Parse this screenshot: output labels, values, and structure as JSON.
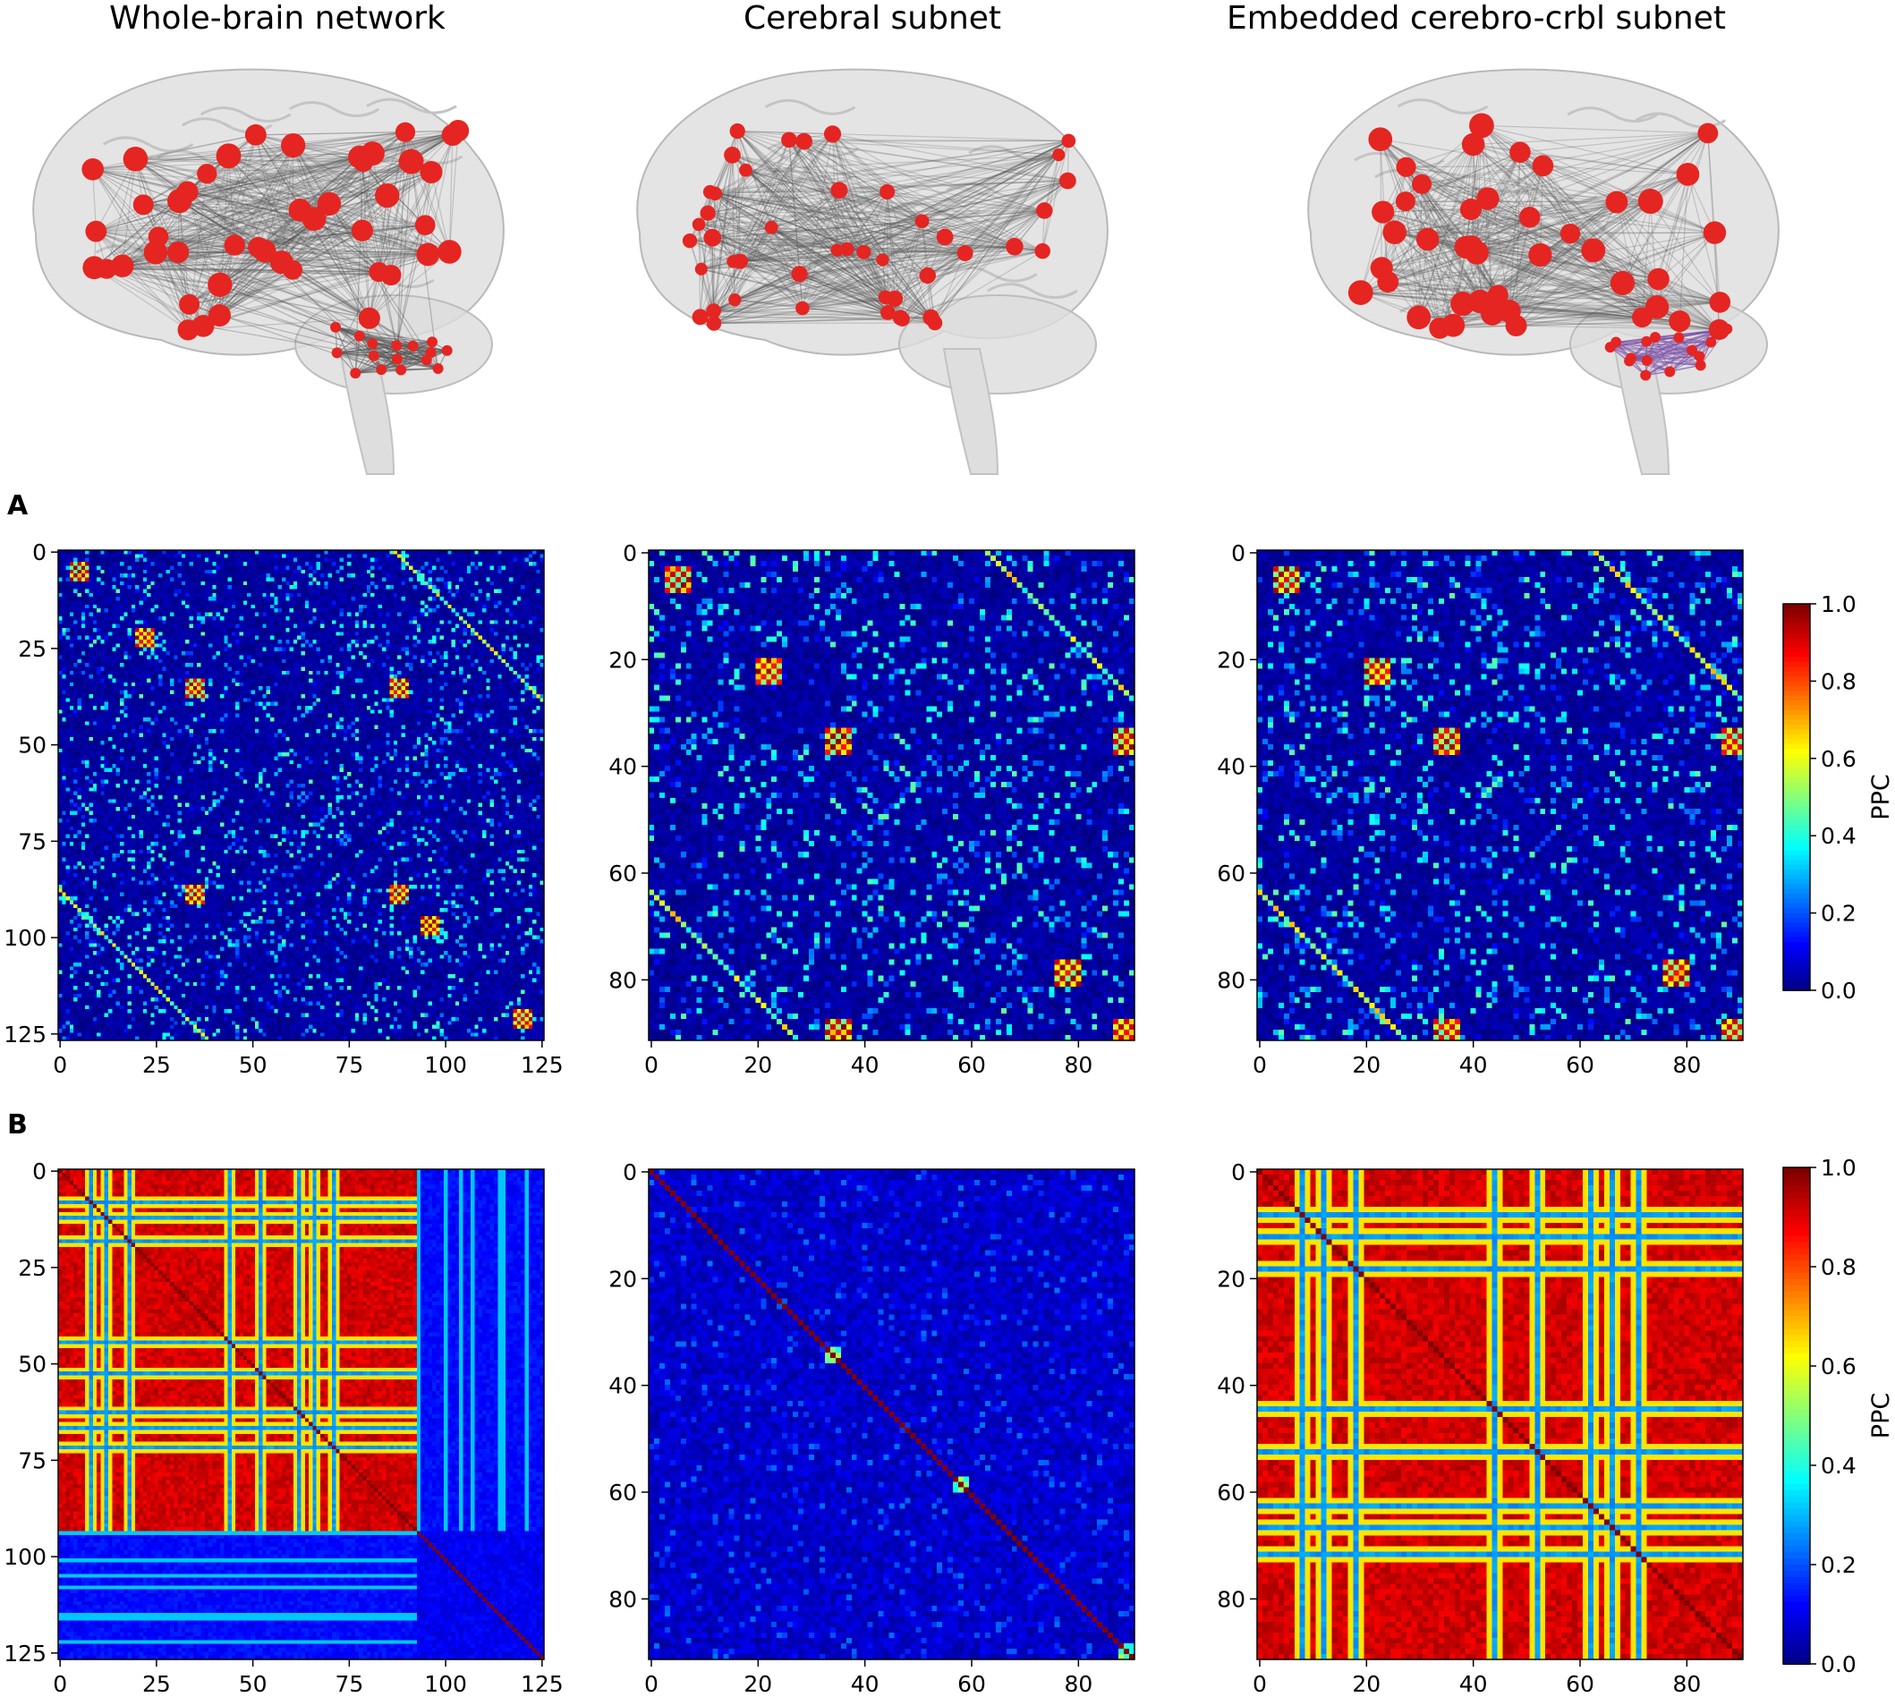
{
  "figure": {
    "columns": [
      {
        "title": "Whole-brain network"
      },
      {
        "title": "Cerebral subnet"
      },
      {
        "title": "Embedded cerebro-crbl subnet"
      }
    ],
    "row_labels": [
      "A",
      "B"
    ],
    "colorbar_label": "PPC",
    "colors": {
      "node": "#e52521",
      "edge": "#555555",
      "cerebellar_edge": "#7b4fa8",
      "brain_fill": "#d9d9d9"
    }
  },
  "chart_data": [
    {
      "type": "heatmap",
      "row": "A",
      "panel": "Whole-brain network",
      "size": 126,
      "xticks": [
        0,
        25,
        50,
        75,
        100,
        125
      ],
      "yticks": [
        0,
        25,
        50,
        75,
        100,
        125
      ],
      "vmin": 0.0,
      "vmax": 1.0,
      "colormap": "jet",
      "pattern": "sparse",
      "hot_blocks": [
        [
          5,
          5
        ],
        [
          35,
          35
        ],
        [
          88,
          35
        ],
        [
          35,
          88
        ],
        [
          88,
          88
        ],
        [
          96,
          96
        ],
        [
          120,
          120
        ],
        [
          22,
          22
        ]
      ]
    },
    {
      "type": "heatmap",
      "row": "A",
      "panel": "Cerebral subnet",
      "size": 91,
      "xticks": [
        0,
        20,
        40,
        60,
        80
      ],
      "yticks": [
        0,
        20,
        40,
        60,
        80
      ],
      "vmin": 0.0,
      "vmax": 1.0,
      "colormap": "jet",
      "pattern": "sparse",
      "hot_blocks": [
        [
          5,
          5
        ],
        [
          22,
          22
        ],
        [
          35,
          35
        ],
        [
          89,
          35
        ],
        [
          35,
          89
        ],
        [
          89,
          89
        ],
        [
          78,
          78
        ]
      ]
    },
    {
      "type": "heatmap",
      "row": "A",
      "panel": "Embedded cerebro-crbl subnet",
      "size": 91,
      "xticks": [
        0,
        20,
        40,
        60,
        80
      ],
      "yticks": [
        0,
        20,
        40,
        60,
        80
      ],
      "vmin": 0.0,
      "vmax": 1.0,
      "colormap": "jet",
      "pattern": "sparse",
      "hot_blocks": [
        [
          5,
          5
        ],
        [
          22,
          22
        ],
        [
          35,
          35
        ],
        [
          89,
          35
        ],
        [
          35,
          89
        ],
        [
          89,
          89
        ],
        [
          78,
          78
        ]
      ]
    },
    {
      "type": "heatmap",
      "row": "B",
      "panel": "Whole-brain network",
      "size": 126,
      "xticks": [
        0,
        25,
        50,
        75,
        100,
        125
      ],
      "yticks": [
        0,
        25,
        50,
        75,
        100,
        125
      ],
      "vmin": 0.0,
      "vmax": 1.0,
      "colormap": "jet",
      "pattern": "blockwise",
      "sync_block": [
        0,
        93
      ],
      "low_columns": [
        8,
        12,
        18,
        44,
        52,
        62,
        66,
        71
      ]
    },
    {
      "type": "heatmap",
      "row": "B",
      "panel": "Cerebral subnet",
      "size": 91,
      "xticks": [
        0,
        20,
        40,
        60,
        80
      ],
      "yticks": [
        0,
        20,
        40,
        60,
        80
      ],
      "vmin": 0.0,
      "vmax": 1.0,
      "colormap": "jet",
      "pattern": "diagonal"
    },
    {
      "type": "heatmap",
      "row": "B",
      "panel": "Embedded cerebro-crbl subnet",
      "size": 91,
      "xticks": [
        0,
        20,
        40,
        60,
        80
      ],
      "yticks": [
        0,
        20,
        40,
        60,
        80
      ],
      "vmin": 0.0,
      "vmax": 1.0,
      "colormap": "jet",
      "pattern": "blockwise",
      "sync_block": [
        0,
        91
      ],
      "low_columns": [
        8,
        12,
        18,
        44,
        52,
        62,
        66,
        71
      ]
    }
  ],
  "colorbars": [
    {
      "row": "A",
      "ticks": [
        "0.0",
        "0.2",
        "0.4",
        "0.6",
        "0.8",
        "1.0"
      ],
      "label": "PPC"
    },
    {
      "row": "B",
      "ticks": [
        "0.0",
        "0.2",
        "0.4",
        "0.6",
        "0.8",
        "1.0"
      ],
      "label": "PPC"
    }
  ]
}
